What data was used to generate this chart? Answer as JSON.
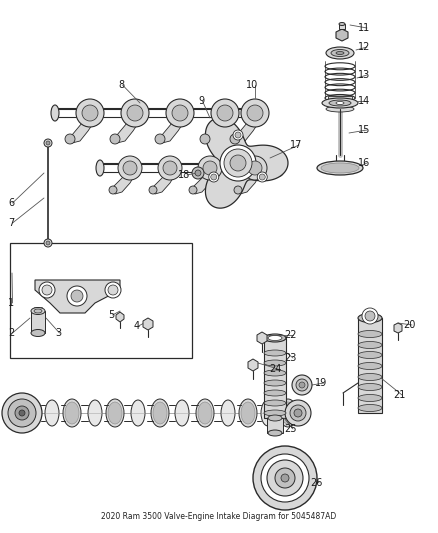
{
  "title": "2020 Ram 3500 Valve-Engine Intake Diagram for 5045487AD",
  "bg_color": "#ffffff",
  "fig_width": 4.38,
  "fig_height": 5.33,
  "dpi": 100,
  "line_color": "#2a2a2a",
  "fill_light": "#d8d8d8",
  "fill_mid": "#c0c0c0",
  "fill_dark": "#a0a0a0",
  "text_color": "#1a1a1a",
  "leader_color": "#555555",
  "font_size": 7.0
}
